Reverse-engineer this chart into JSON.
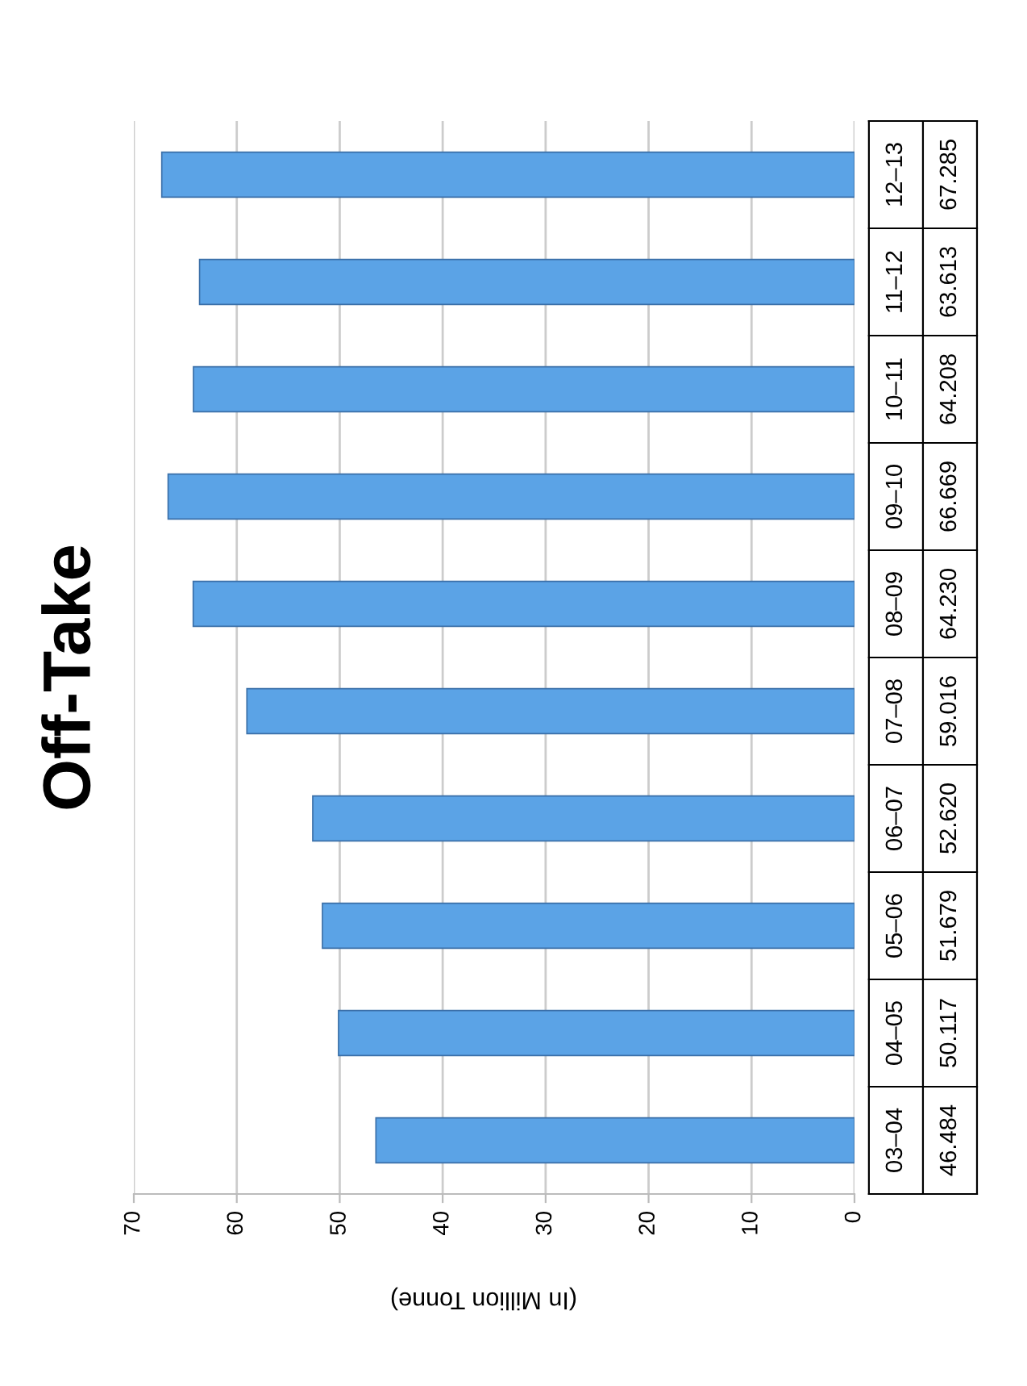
{
  "chart_data": {
    "type": "bar",
    "orientation": "horizontal",
    "title": "Off-Take",
    "xlabel": "(In Million Tonne)",
    "categories": [
      "12–13",
      "11–12",
      "10–11",
      "09–10",
      "08–09",
      "07–08",
      "06–07",
      "05–06",
      "04–05",
      "03–04"
    ],
    "values": [
      67.285,
      63.613,
      64.208,
      66.669,
      64.23,
      59.016,
      52.62,
      51.679,
      50.117,
      46.484
    ],
    "value_labels": [
      "67.285",
      "63.613",
      "64.208",
      "66.669",
      "64.230",
      "59.016",
      "52.620",
      "51.679",
      "50.117",
      "46.484"
    ],
    "color": "#5ba3e6",
    "xlim": [
      70,
      0
    ],
    "xticks": [
      70,
      60,
      50,
      40,
      30,
      20,
      10,
      0
    ],
    "grid": "x",
    "tick_labels": "x"
  }
}
